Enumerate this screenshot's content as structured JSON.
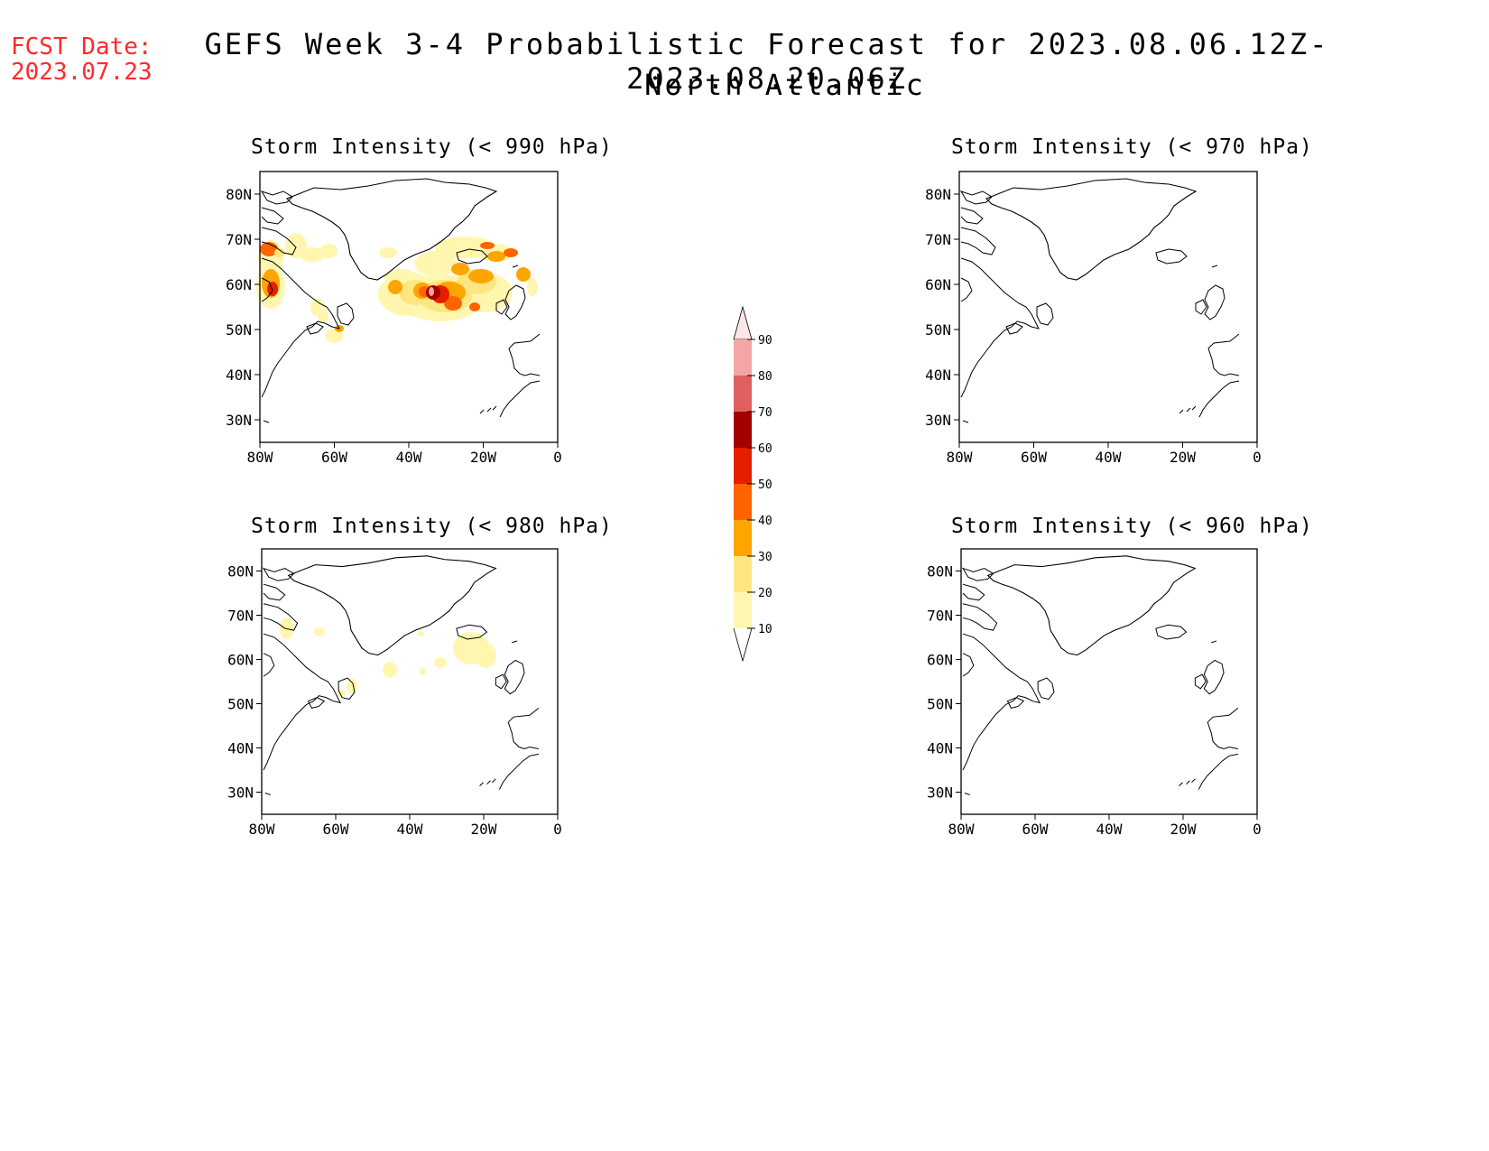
{
  "header": {
    "fcst_label": "FCST Date:",
    "fcst_date": "2023.07.23",
    "title": "GEFS Week 3-4 Probabilistic Forecast for 2023.08.06.12Z-2023.08.20.06Z",
    "subtitle": "North Atlantic"
  },
  "axes": {
    "lat_ticks": [
      "80N",
      "70N",
      "60N",
      "50N",
      "40N",
      "30N"
    ],
    "lon_ticks": [
      "80W",
      "60W",
      "40W",
      "20W",
      "0"
    ]
  },
  "panels": [
    {
      "id": "p990",
      "title": "Storm Intensity (< 990 hPa)",
      "has_data": true
    },
    {
      "id": "p970",
      "title": "Storm Intensity (< 970 hPa)",
      "has_data": false
    },
    {
      "id": "p980",
      "title": "Storm Intensity (< 980 hPa)",
      "has_data": true
    },
    {
      "id": "p960",
      "title": "Storm Intensity (< 960 hPa)",
      "has_data": false
    }
  ],
  "colorbar": {
    "levels": [
      "10",
      "20",
      "30",
      "40",
      "50",
      "60",
      "70",
      "80",
      "90"
    ],
    "colors": [
      "#fff6b0",
      "#ffe680",
      "#ffa500",
      "#ff6400",
      "#e61e00",
      "#a50000",
      "#e06060",
      "#f5a5a5",
      "#ffe6e6"
    ]
  }
}
